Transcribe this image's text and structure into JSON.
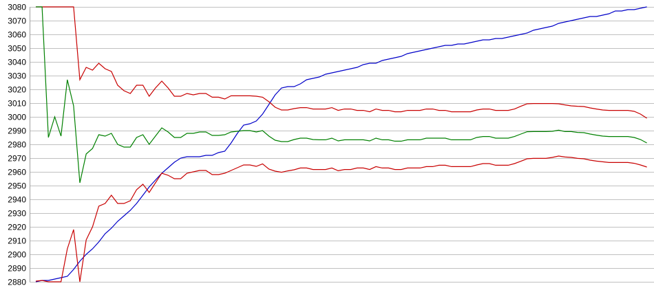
{
  "chart_data": {
    "type": "line",
    "title": "",
    "xlabel": "",
    "ylabel": "",
    "ylim": [
      2880,
      3080
    ],
    "yticks": [
      3080,
      3070,
      3060,
      3050,
      3040,
      3030,
      3020,
      3010,
      3000,
      2990,
      2980,
      2970,
      2960,
      2950,
      2940,
      2930,
      2920,
      2910,
      2900,
      2890,
      2880
    ],
    "grid": true,
    "legend": "none",
    "x_points": 98,
    "colors": {
      "grid": "#c0c0c0",
      "axis": "#a0a0a0"
    },
    "series": [
      {
        "color": "#0000c8",
        "values": [
          2880,
          2881,
          2881,
          2882,
          2883,
          2884,
          2889,
          2895,
          2900,
          2904,
          2909,
          2915,
          2919,
          2924,
          2928,
          2932,
          2937,
          2943,
          2949,
          2954,
          2959,
          2963,
          2967,
          2970,
          2971,
          2971,
          2971,
          2972,
          2972,
          2974,
          2975,
          2981,
          2988,
          2994,
          2995,
          2997,
          3002,
          3009,
          3016,
          3021,
          3022,
          3022,
          3024,
          3027,
          3028,
          3029,
          3031,
          3032,
          3033,
          3034,
          3035,
          3036,
          3038,
          3039,
          3039,
          3041,
          3042,
          3043,
          3044,
          3046,
          3047,
          3048,
          3049,
          3050,
          3051,
          3052,
          3052,
          3053,
          3053,
          3054,
          3055,
          3056,
          3056,
          3057,
          3057,
          3058,
          3059,
          3060,
          3061,
          3063,
          3064,
          3065,
          3066,
          3068,
          3069,
          3070,
          3071,
          3072,
          3073,
          3073,
          3074,
          3075,
          3077,
          3077,
          3078,
          3078,
          3079,
          3080
        ]
      },
      {
        "color": "#c80000",
        "values": [
          3080,
          3080,
          3080,
          3080,
          3080,
          3080,
          3080,
          3027,
          3036,
          3034,
          3039,
          3035,
          3033,
          3023,
          3019,
          3017,
          3023,
          3023,
          3015,
          3021,
          3026,
          3021,
          3015,
          3015,
          3017,
          3016,
          3017,
          3017,
          3014.3,
          3014.3,
          3013,
          3015.3,
          3015.3,
          3015.3,
          3015.3,
          3015,
          3014.3,
          3011,
          3007,
          3005,
          3005,
          3006,
          3006.7,
          3006.7,
          3005.7,
          3005.7,
          3005.7,
          3006.7,
          3004.7,
          3005.7,
          3005.7,
          3004.7,
          3004.7,
          3003.7,
          3005.7,
          3004.7,
          3004.7,
          3003.7,
          3003.7,
          3004.7,
          3004.7,
          3004.7,
          3005.7,
          3005.7,
          3004.7,
          3004.7,
          3003.7,
          3003.7,
          3003.7,
          3003.7,
          3005,
          3005.7,
          3005.7,
          3004.7,
          3004.7,
          3004.7,
          3005.7,
          3007.7,
          3009.5,
          3009.7,
          3009.7,
          3009.7,
          3009.7,
          3009.5,
          3008.7,
          3008,
          3007.7,
          3007.5,
          3006.5,
          3005.7,
          3005,
          3004.7,
          3004.7,
          3004.7,
          3004.7,
          3004,
          3002,
          2999
        ]
      },
      {
        "color": "#008000",
        "values": [
          3080,
          3080,
          2985,
          3000,
          2986,
          3027,
          3008,
          2952,
          2973,
          2977,
          2987,
          2986,
          2988,
          2980,
          2978,
          2978,
          2985,
          2987,
          2980,
          2986,
          2992,
          2989,
          2985,
          2985,
          2988,
          2988,
          2989,
          2989,
          2986.5,
          2986.5,
          2987,
          2989,
          2989.5,
          2990,
          2990,
          2989,
          2990,
          2986,
          2983,
          2982,
          2982,
          2983.5,
          2984.5,
          2984.5,
          2983.5,
          2983.3,
          2983.3,
          2984.5,
          2982.5,
          2983.3,
          2983.3,
          2983.3,
          2983.3,
          2982.5,
          2984.5,
          2983.3,
          2983.3,
          2982.3,
          2982.3,
          2983.3,
          2983.3,
          2983.3,
          2984.5,
          2984.5,
          2984.5,
          2984.5,
          2983.3,
          2983.3,
          2983.3,
          2983.3,
          2985,
          2985.7,
          2985.7,
          2984.5,
          2984.5,
          2984.5,
          2985.7,
          2987.5,
          2989.2,
          2989.3,
          2989.3,
          2989.3,
          2989.5,
          2990.3,
          2989.3,
          2989.3,
          2988.7,
          2988.5,
          2987.5,
          2986.7,
          2986,
          2985.7,
          2985.7,
          2985.7,
          2985.7,
          2985,
          2983.5,
          2981
        ]
      },
      {
        "color": "#c80000",
        "values": [
          2880.5,
          2881,
          2880,
          2880,
          2880,
          2904,
          2918,
          2880,
          2910.5,
          2920,
          2935,
          2937,
          2943,
          2937,
          2937,
          2939,
          2947,
          2951,
          2945,
          2952,
          2959,
          2957.5,
          2955,
          2955,
          2959,
          2960,
          2961,
          2961,
          2958,
          2958,
          2959,
          2961,
          2963,
          2965,
          2965,
          2964,
          2965.8,
          2962,
          2960.5,
          2959.7,
          2960.7,
          2961.5,
          2962.8,
          2962.8,
          2961.7,
          2961.7,
          2961.7,
          2962.8,
          2960.8,
          2961.7,
          2961.7,
          2962.8,
          2962.8,
          2961.7,
          2963.8,
          2962.8,
          2962.8,
          2961.7,
          2961.7,
          2962.8,
          2962.8,
          2962.8,
          2963.8,
          2963.8,
          2964.8,
          2964.8,
          2963.8,
          2963.8,
          2963.8,
          2963.8,
          2965,
          2966,
          2966,
          2964.8,
          2964.8,
          2964.8,
          2966,
          2967.7,
          2969.5,
          2969.8,
          2969.8,
          2969.8,
          2970.5,
          2971.5,
          2970.8,
          2970.5,
          2969.8,
          2969.5,
          2968.5,
          2967.8,
          2967.3,
          2966.8,
          2966.8,
          2966.8,
          2966.8,
          2966.2,
          2965,
          2963.5
        ]
      }
    ]
  }
}
